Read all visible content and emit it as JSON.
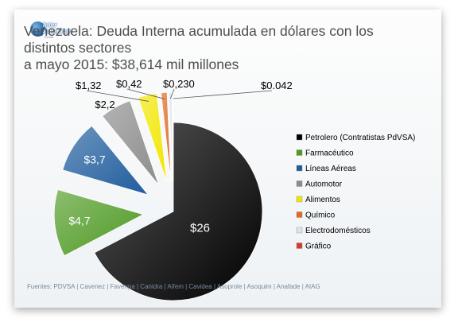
{
  "logo": {
    "line1": "Inter",
    "line2": "American",
    "line3": "Trends"
  },
  "title_line1": "Venezuela: Deuda Interna acumulada en dólares con los distintos sectores",
  "title_line2": "a mayo 2015: $38,614 mil millones",
  "footer": "Fuentes: PDVSA | Cavenez | Favenpa | Canidra | Aifem | Cavidea | Asoprole | Asoquim | Anafade | AIAG",
  "chart_data": {
    "type": "pie",
    "title": "Venezuela: Deuda Interna acumulada en dólares con los distintos sectores a mayo 2015: $38,614 mil millones",
    "unit": "mil millones USD",
    "legend_position": "right",
    "slices": [
      {
        "name": "Petrolero (Contratistas PdVSA)",
        "value": 26,
        "label": "$26",
        "color": "#000000",
        "explode": 0
      },
      {
        "name": "Farmacéutico",
        "value": 4.7,
        "label": "$4,7",
        "color": "#4e9a23",
        "explode": 38
      },
      {
        "name": "Líneas Aéreas",
        "value": 3.7,
        "label": "$3,7",
        "color": "#1f5c9d",
        "explode": 38
      },
      {
        "name": "Automotor",
        "value": 2.2,
        "label": "$2,2",
        "color": "#8c8c8c",
        "explode": 38
      },
      {
        "name": "Alimentos",
        "value": 1.32,
        "label": "$1,32",
        "color": "#f2e600",
        "explode": 38
      },
      {
        "name": "Químico",
        "value": 0.42,
        "label": "$0,42",
        "color": "#e06a1e",
        "explode": 38
      },
      {
        "name": "Electrodomésticos",
        "value": 0.23,
        "label": "$0,230",
        "color": "#dfe4ea",
        "explode": 38
      },
      {
        "name": "Gráfico",
        "value": 0.042,
        "label": "$0.042",
        "color": "#d63a2c",
        "explode": 38
      }
    ]
  }
}
